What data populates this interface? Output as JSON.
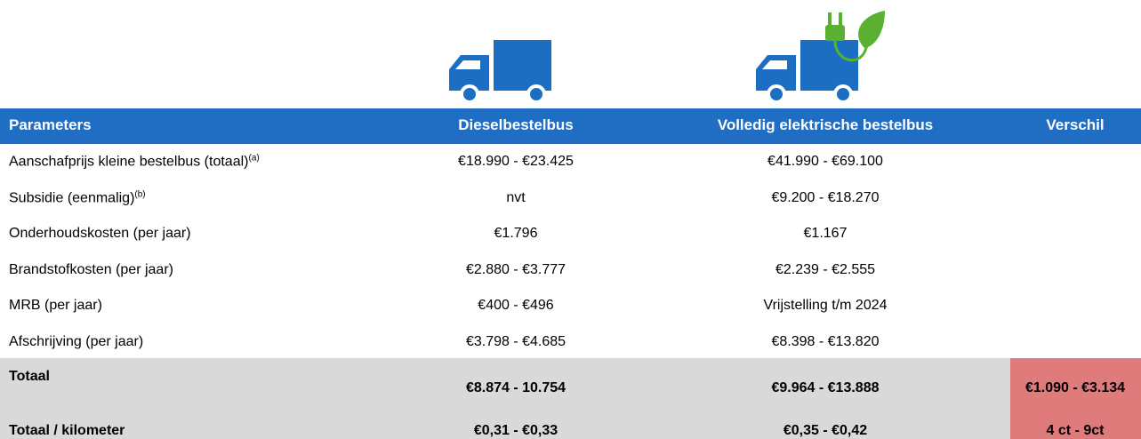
{
  "header": {
    "parameters": "Parameters",
    "diesel": "Dieselbestelbus",
    "electric": "Volledig elektrische bestelbus",
    "difference": "Verschil"
  },
  "rows": [
    {
      "label": "Aanschafprijs kleine bestelbus (totaal)",
      "note": "(a)",
      "diesel": "€18.990 - €23.425",
      "electric": "€41.990 - €69.100"
    },
    {
      "label": "Subsidie (eenmalig)",
      "note": "(b)",
      "diesel": "nvt",
      "electric": "€9.200 - €18.270"
    },
    {
      "label": "Onderhoudskosten (per jaar)",
      "diesel": "€1.796",
      "electric": "€1.167"
    },
    {
      "label": "Brandstofkosten (per jaar)",
      "diesel": "€2.880 - €3.777",
      "electric": "€2.239 - €2.555"
    },
    {
      "label": "MRB (per jaar)",
      "diesel": "€400 - €496",
      "electric": "Vrijstelling t/m 2024"
    },
    {
      "label": "Afschrijving (per jaar)",
      "diesel": "€3.798 - €4.685",
      "electric": "€8.398 - €13.820"
    }
  ],
  "totals": [
    {
      "label": "Totaal",
      "diesel": "€8.874 - 10.754",
      "electric": "€9.964 - €13.888",
      "difference": "€1.090 - €3.134"
    },
    {
      "label": "Totaal / kilometer",
      "diesel": "€0,31 - €0,33",
      "electric": "€0,35 - €0,42",
      "difference": "4 ct - 9ct"
    }
  ]
}
